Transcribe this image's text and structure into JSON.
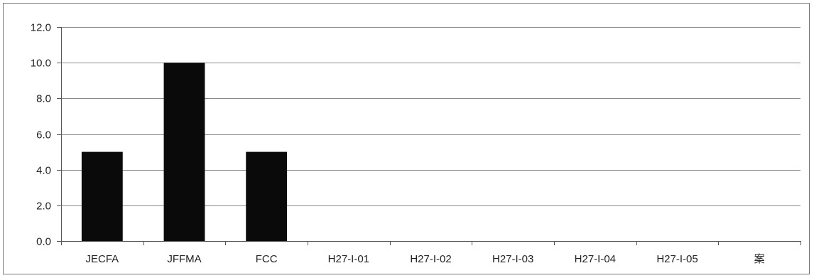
{
  "chart_data": {
    "type": "bar",
    "categories": [
      "JECFA",
      "JFFMA",
      "FCC",
      "H27-I-01",
      "H27-I-02",
      "H27-I-03",
      "H27-I-04",
      "H27-I-05",
      "案"
    ],
    "values": [
      5.0,
      10.0,
      5.0,
      0,
      0,
      0,
      0,
      0,
      0
    ],
    "yticks": [
      "0.0",
      "2.0",
      "4.0",
      "6.0",
      "8.0",
      "10.0",
      "12.0"
    ],
    "ylim": [
      0,
      12
    ],
    "grid": true,
    "legend": "none",
    "bar_color": "#0a0a0a",
    "grid_color": "#8a8a8a",
    "axis_color": "#555555"
  }
}
